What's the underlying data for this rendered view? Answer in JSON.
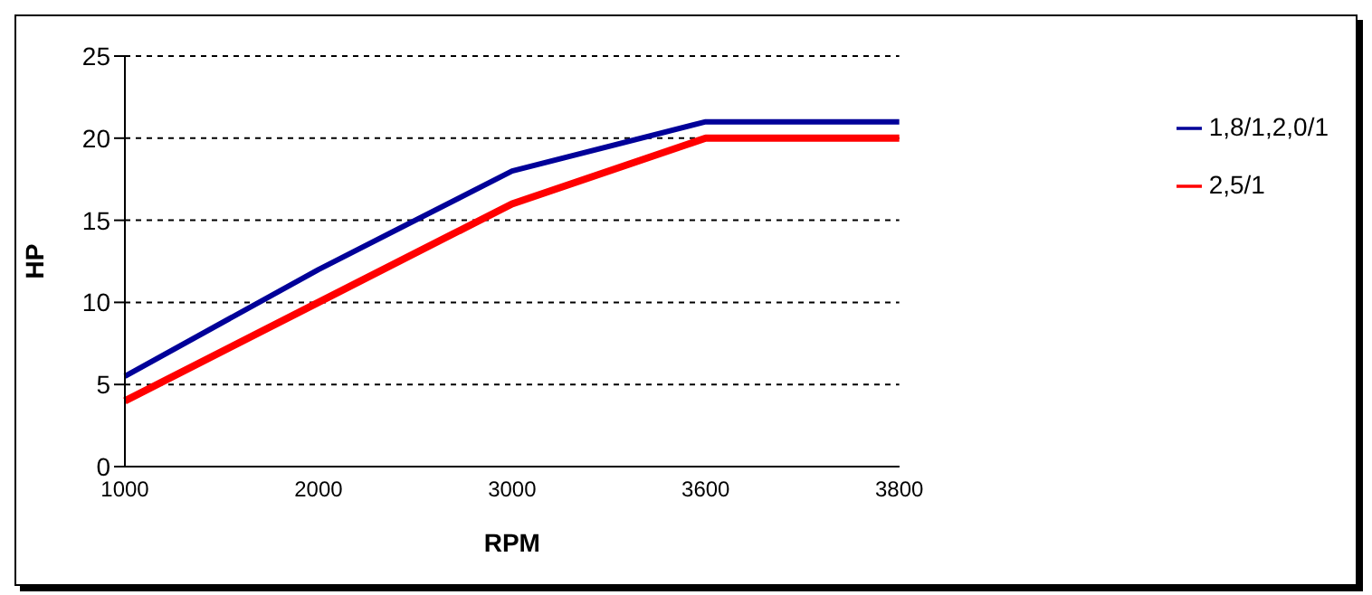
{
  "chart_data": {
    "type": "line",
    "xlabel": "RPM",
    "ylabel": "HP",
    "categories": [
      "1000",
      "2000",
      "3000",
      "3600",
      "3800"
    ],
    "series": [
      {
        "name": "1,8/1,2,0/1",
        "color": "#000099",
        "values": [
          5.5,
          12,
          18,
          21,
          21
        ]
      },
      {
        "name": "2,5/1",
        "color": "#ff0000",
        "values": [
          4,
          10,
          16,
          20,
          20
        ]
      }
    ],
    "ylim": [
      0,
      25
    ],
    "yticks": [
      0,
      5,
      10,
      15,
      20,
      25
    ],
    "grid": "y",
    "legend": "right",
    "marker": "none",
    "line_style": "solid"
  }
}
